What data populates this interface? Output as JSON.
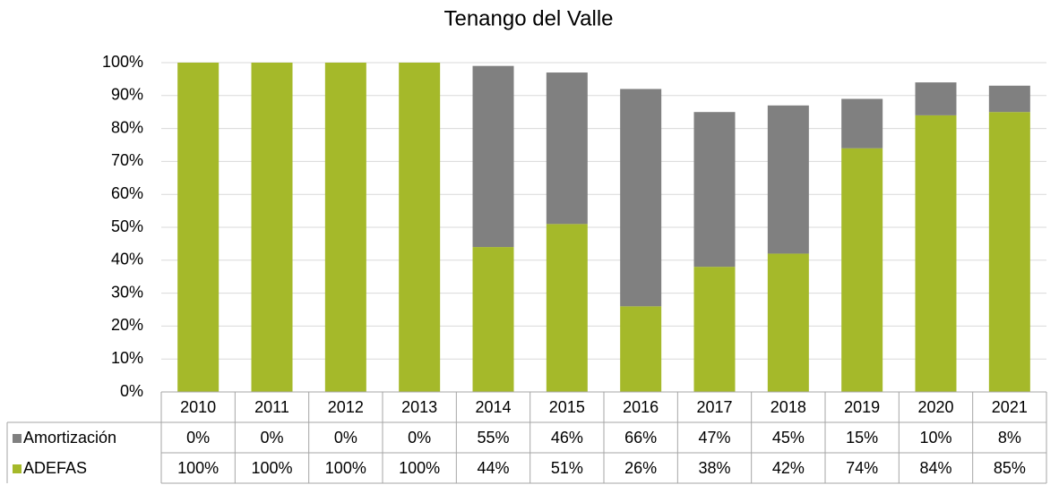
{
  "chart_data": {
    "type": "bar",
    "stacked": true,
    "title": "Tenango del Valle",
    "categories": [
      "2010",
      "2011",
      "2012",
      "2013",
      "2014",
      "2015",
      "2016",
      "2017",
      "2018",
      "2019",
      "2020",
      "2021"
    ],
    "series": [
      {
        "name": "Amortización",
        "color": "#808080",
        "values": [
          0,
          0,
          0,
          0,
          55,
          46,
          66,
          47,
          45,
          15,
          10,
          8
        ],
        "value_labels": [
          "0%",
          "0%",
          "0%",
          "0%",
          "55%",
          "46%",
          "66%",
          "47%",
          "45%",
          "15%",
          "10%",
          "8%"
        ]
      },
      {
        "name": "ADEFAS",
        "color": "#a5b92a",
        "values": [
          100,
          100,
          100,
          100,
          44,
          51,
          26,
          38,
          42,
          74,
          84,
          85
        ],
        "value_labels": [
          "100%",
          "100%",
          "100%",
          "100%",
          "44%",
          "51%",
          "26%",
          "38%",
          "42%",
          "74%",
          "84%",
          "85%"
        ]
      }
    ],
    "ylim": [
      0,
      100
    ],
    "yticks": [
      {
        "value": 0,
        "label": "0%"
      },
      {
        "value": 10,
        "label": "10%"
      },
      {
        "value": 20,
        "label": "20%"
      },
      {
        "value": 30,
        "label": "30%"
      },
      {
        "value": 40,
        "label": "40%"
      },
      {
        "value": 50,
        "label": "50%"
      },
      {
        "value": 60,
        "label": "60%"
      },
      {
        "value": 70,
        "label": "70%"
      },
      {
        "value": 80,
        "label": "80%"
      },
      {
        "value": 90,
        "label": "90%"
      },
      {
        "value": 100,
        "label": "100%"
      }
    ],
    "grid": true
  }
}
